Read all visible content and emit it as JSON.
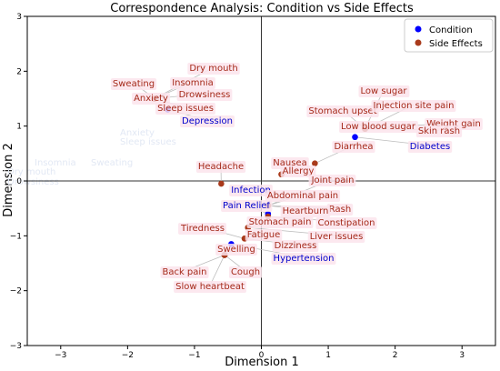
{
  "chart_data": {
    "type": "scatter",
    "title": "Correspondence Analysis: Condition vs Side Effects",
    "xlabel": "Dimension 1",
    "ylabel": "Dimension 2",
    "xlim": [
      -3.5,
      3.5
    ],
    "ylim": [
      -3,
      3
    ],
    "xticks": [
      -3,
      -2,
      -1,
      0,
      1,
      2,
      3
    ],
    "yticks": [
      -3,
      -2,
      -1,
      0,
      1,
      2,
      3
    ],
    "grid": false,
    "reference_lines": [
      {
        "axis": "x",
        "value": 0
      },
      {
        "axis": "y",
        "value": 0
      }
    ],
    "legend": {
      "position": "top-right"
    },
    "series": [
      {
        "name": "Condition",
        "color": "#0000ff",
        "label_color": "#0000cc",
        "points": [
          {
            "label": "Depression",
            "x": -1.4,
            "y": 1.3
          },
          {
            "label": "Diabetes",
            "x": 1.4,
            "y": 0.8
          },
          {
            "label": "Infection",
            "x": 0.1,
            "y": -0.2
          },
          {
            "label": "Pain Relief",
            "x": 0.1,
            "y": -0.6
          },
          {
            "label": "Hypertension",
            "x": -0.45,
            "y": -1.15
          }
        ]
      },
      {
        "name": "Side Effects",
        "color": "#a93a1b",
        "label_color": "#a52a1a",
        "points": [
          {
            "label": "Dry mouth",
            "x": -1.6,
            "y": 1.5
          },
          {
            "label": "Insomnia",
            "x": -1.6,
            "y": 1.5
          },
          {
            "label": "Sweating",
            "x": -1.6,
            "y": 1.5
          },
          {
            "label": "Anxiety",
            "x": -1.6,
            "y": 1.5
          },
          {
            "label": "Drowsiness",
            "x": -1.6,
            "y": 1.5
          },
          {
            "label": "Sleep issues",
            "x": -1.6,
            "y": 1.5
          },
          {
            "label": "Low sugar",
            "x": 1.55,
            "y": 0.95
          },
          {
            "label": "Stomach upset",
            "x": 1.55,
            "y": 0.95
          },
          {
            "label": "Injection site pain",
            "x": 1.55,
            "y": 0.95
          },
          {
            "label": "Low blood sugar",
            "x": 1.55,
            "y": 0.95
          },
          {
            "label": "Weight gain",
            "x": 1.55,
            "y": 0.95
          },
          {
            "label": "Skin rash",
            "x": 1.55,
            "y": 0.95
          },
          {
            "label": "Diarrhea",
            "x": 0.8,
            "y": 0.32
          },
          {
            "label": "Headache",
            "x": -0.6,
            "y": -0.05
          },
          {
            "label": "Nausea",
            "x": 0.3,
            "y": 0.12
          },
          {
            "label": "Allergy",
            "x": 0.3,
            "y": 0.12
          },
          {
            "label": "Joint pain",
            "x": 0.1,
            "y": -0.45
          },
          {
            "label": "Abdominal pain",
            "x": 0.1,
            "y": -0.45
          },
          {
            "label": "Rash",
            "x": 0.1,
            "y": -0.45
          },
          {
            "label": "Heartburn",
            "x": 0.1,
            "y": -0.45
          },
          {
            "label": "Constipation",
            "x": 0.1,
            "y": -0.65
          },
          {
            "label": "Stomach pain",
            "x": -0.2,
            "y": -0.85
          },
          {
            "label": "Liver issues",
            "x": -0.2,
            "y": -0.85
          },
          {
            "label": "Tiredness",
            "x": -0.25,
            "y": -1.05
          },
          {
            "label": "Fatigue",
            "x": -0.25,
            "y": -1.05
          },
          {
            "label": "Dizziness",
            "x": -0.25,
            "y": -1.05
          },
          {
            "label": "Swelling",
            "x": -0.55,
            "y": -1.35
          },
          {
            "label": "Back pain",
            "x": -0.55,
            "y": -1.35
          },
          {
            "label": "Cough",
            "x": -0.55,
            "y": -1.35
          },
          {
            "label": "Slow heartbeat",
            "x": -0.55,
            "y": -1.35
          }
        ]
      }
    ],
    "ghost_labels": [
      "Anxiety",
      "Sleep issues",
      "Insomnia",
      "Sweating",
      "Dry mouth",
      "Drowsiness"
    ]
  }
}
